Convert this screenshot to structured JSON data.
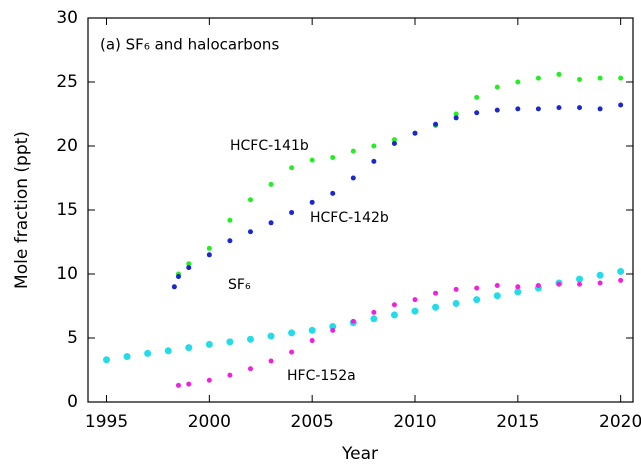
{
  "chart_data": {
    "type": "scatter",
    "title": "(a) SF₆ and halocarbons",
    "xlabel": "Year",
    "ylabel": "Mole fraction (ppt)",
    "xlim": [
      1994.1,
      2020.6
    ],
    "ylim": [
      0,
      30
    ],
    "xticks": [
      1995,
      2000,
      2005,
      2010,
      2015,
      2020
    ],
    "yticks": [
      0,
      5,
      10,
      15,
      20,
      25,
      30
    ],
    "series": [
      {
        "name": "HCFC-141b",
        "color": "#22ee22",
        "x": [
          1998.5,
          1999,
          2000,
          2001,
          2002,
          2003,
          2004,
          2005,
          2006,
          2007,
          2008,
          2009,
          2010,
          2011,
          2012,
          2013,
          2014,
          2015,
          2016,
          2017,
          2018,
          2019,
          2020
        ],
        "values": [
          10,
          10.8,
          12,
          14.2,
          15.8,
          17,
          18.3,
          18.9,
          19.1,
          19.6,
          20,
          20.5,
          21,
          21.6,
          22.5,
          23.8,
          24.6,
          25,
          25.3,
          25.6,
          25.2,
          25.3,
          25.3
        ]
      },
      {
        "name": "HCFC-142b",
        "color": "#1a28cc",
        "x": [
          1998.3,
          1998.5,
          1999,
          2000,
          2001,
          2002,
          2003,
          2004,
          2005,
          2006,
          2007,
          2008,
          2009,
          2010,
          2011,
          2012,
          2013,
          2014,
          2015,
          2016,
          2017,
          2018,
          2019,
          2020
        ],
        "values": [
          9,
          9.8,
          10.5,
          11.5,
          12.6,
          13.3,
          14,
          14.8,
          15.6,
          16.3,
          17.5,
          18.8,
          20.2,
          21,
          21.7,
          22.2,
          22.6,
          22.8,
          22.9,
          22.9,
          23,
          23,
          22.9,
          23.2
        ]
      },
      {
        "name": "SF₆",
        "color": "#22dde8",
        "x": [
          1995,
          1996,
          1997,
          1998,
          1999,
          2000,
          2001,
          2002,
          2003,
          2004,
          2005,
          2006,
          2007,
          2008,
          2009,
          2010,
          2011,
          2012,
          2013,
          2014,
          2015,
          2016,
          2017,
          2018,
          2019,
          2020
        ],
        "values": [
          3.3,
          3.55,
          3.8,
          4.0,
          4.25,
          4.5,
          4.7,
          4.9,
          5.15,
          5.4,
          5.6,
          5.9,
          6.2,
          6.5,
          6.8,
          7.1,
          7.4,
          7.7,
          8.0,
          8.3,
          8.6,
          8.9,
          9.3,
          9.6,
          9.9,
          10.2
        ]
      },
      {
        "name": "HFC-152a",
        "color": "#ee22dd",
        "x": [
          1998.5,
          1999,
          2000,
          2001,
          2002,
          2003,
          2004,
          2005,
          2006,
          2007,
          2008,
          2009,
          2010,
          2011,
          2012,
          2013,
          2014,
          2015,
          2016,
          2017,
          2018,
          2019,
          2020
        ],
        "values": [
          1.3,
          1.4,
          1.7,
          2.1,
          2.6,
          3.2,
          3.9,
          4.8,
          5.6,
          6.3,
          7.0,
          7.6,
          8.0,
          8.5,
          8.8,
          8.9,
          9.1,
          9.0,
          9.1,
          9.2,
          9.2,
          9.3,
          9.5
        ]
      }
    ]
  }
}
